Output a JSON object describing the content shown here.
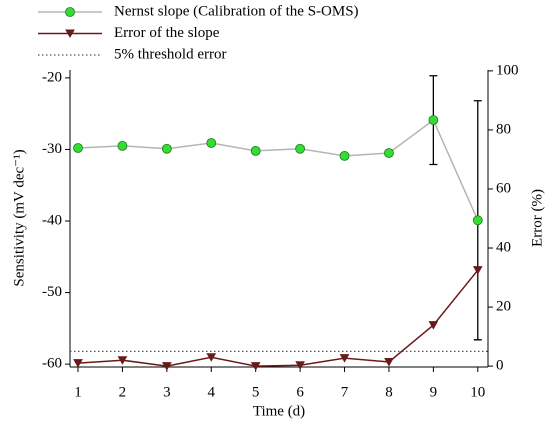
{
  "chart_data": {
    "type": "line",
    "xlabel": "Time (d)",
    "ylabel": "Sensitivity (mV dec⁻¹)",
    "y2label": "Error (%)",
    "x": [
      1,
      2,
      3,
      4,
      5,
      6,
      7,
      8,
      9,
      10
    ],
    "xlim": [
      0.82,
      10.23
    ],
    "xticks": [
      1,
      2,
      3,
      4,
      5,
      6,
      7,
      8,
      9,
      10
    ],
    "ylim": [
      -60.4,
      -18.9
    ],
    "yticks": [
      -60,
      -50,
      -40,
      -30,
      -20
    ],
    "y2lim": [
      -0.3,
      100.3
    ],
    "y2ticks": [
      0,
      20,
      40,
      60,
      80,
      100
    ],
    "series": [
      {
        "name": "Nernst slope (Calibration of the S-OMS)",
        "color": "#33dd33",
        "line_color": "#b5b5b5",
        "marker": "circle",
        "axis": "y",
        "values": [
          -29.8,
          -29.5,
          -29.9,
          -29.1,
          -30.2,
          -29.9,
          -30.9,
          -30.5,
          -25.9,
          -39.9
        ],
        "errors": [
          null,
          null,
          null,
          null,
          null,
          null,
          null,
          null,
          6.2,
          16.7
        ]
      },
      {
        "name": "Error of the slope",
        "color": "#6b1a1a",
        "line_color": "#6b1a1a",
        "marker": "triangle-down",
        "axis": "y2",
        "values": [
          1.0,
          2.0,
          0.0,
          3.0,
          0.0,
          0.3,
          2.7,
          1.4,
          13.9,
          32.5
        ]
      }
    ],
    "threshold": {
      "name": "5% threshold error",
      "value": 5,
      "axis": "y2",
      "color": "#555555"
    }
  }
}
